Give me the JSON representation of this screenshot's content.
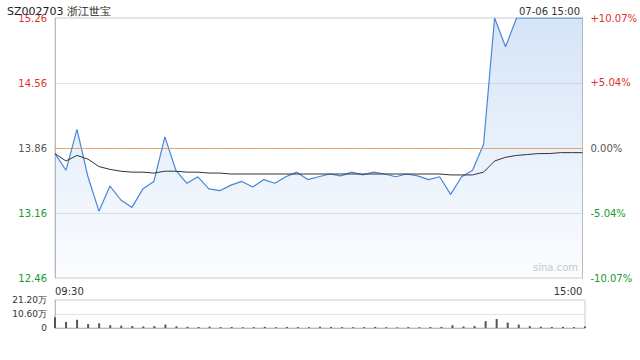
{
  "chart_data": [
    {
      "type": "line",
      "title": "SZ002703 浙江世宝",
      "subtitle": "07-06 15:00",
      "annotations": [
        "sina.com"
      ],
      "categories": [
        "09:30",
        null,
        null,
        null,
        null,
        null,
        null,
        null,
        null,
        null,
        null,
        null,
        null,
        null,
        null,
        null,
        null,
        null,
        null,
        null,
        null,
        null,
        null,
        null,
        null,
        null,
        null,
        null,
        null,
        null,
        null,
        null,
        null,
        null,
        null,
        null,
        null,
        null,
        null,
        null,
        null,
        null,
        null,
        null,
        null,
        null,
        null,
        null,
        "15:00"
      ],
      "series": [
        {
          "type": "area",
          "color": "#4a86d8",
          "values": [
            13.8,
            13.62,
            14.06,
            13.55,
            13.18,
            13.45,
            13.3,
            13.22,
            13.42,
            13.5,
            13.98,
            13.62,
            13.48,
            13.55,
            13.42,
            13.4,
            13.46,
            13.5,
            13.44,
            13.52,
            13.48,
            13.55,
            13.6,
            13.52,
            13.55,
            13.58,
            13.56,
            13.6,
            13.57,
            13.6,
            13.58,
            13.55,
            13.58,
            13.56,
            13.52,
            13.55,
            13.36,
            13.55,
            13.62,
            13.9,
            15.26,
            14.95,
            15.26,
            15.26,
            15.26,
            15.26,
            15.26,
            15.26,
            15.26
          ]
        },
        {
          "type": "line",
          "color": "#333333",
          "values": [
            13.8,
            13.72,
            13.78,
            13.74,
            13.66,
            13.63,
            13.61,
            13.6,
            13.6,
            13.59,
            13.61,
            13.61,
            13.6,
            13.6,
            13.59,
            13.59,
            13.58,
            13.58,
            13.58,
            13.58,
            13.58,
            13.58,
            13.58,
            13.58,
            13.58,
            13.58,
            13.58,
            13.58,
            13.58,
            13.58,
            13.58,
            13.58,
            13.58,
            13.58,
            13.58,
            13.58,
            13.57,
            13.57,
            13.57,
            13.6,
            13.72,
            13.76,
            13.78,
            13.79,
            13.8,
            13.8,
            13.81,
            13.81,
            13.81
          ]
        }
      ],
      "ylim": [
        12.46,
        15.26
      ],
      "yticks": [
        12.46,
        13.16,
        13.86,
        14.56,
        15.26
      ],
      "y2lim": [
        -10.07,
        10.07
      ],
      "y2ticks": [
        {
          "value": -10.07,
          "label": "-10.07%"
        },
        {
          "value": -5.04,
          "label": "-5.04%"
        },
        {
          "value": 0,
          "label": "0.00%"
        },
        {
          "value": 5.04,
          "label": "+5.04%"
        },
        {
          "value": 10.07,
          "label": "+10.07%"
        }
      ],
      "baseline": 13.86,
      "grid": true
    },
    {
      "type": "bar",
      "categories": [
        null,
        null,
        null,
        null,
        null,
        null,
        null,
        null,
        null,
        null,
        null,
        null,
        null,
        null,
        null,
        null,
        null,
        null,
        null,
        null,
        null,
        null,
        null,
        null,
        null,
        null,
        null,
        null,
        null,
        null,
        null,
        null,
        null,
        null,
        null,
        null,
        null,
        null,
        null,
        null,
        null,
        null,
        null,
        null,
        null,
        null,
        null,
        null,
        null
      ],
      "values": [
        82000,
        46000,
        62000,
        30000,
        36000,
        22000,
        18000,
        15000,
        12000,
        14000,
        26000,
        13000,
        9000,
        8000,
        10000,
        7000,
        8000,
        6000,
        7000,
        9000,
        6000,
        8000,
        7000,
        6000,
        9000,
        8000,
        7000,
        6000,
        7000,
        8000,
        6000,
        5000,
        7000,
        6000,
        8000,
        9000,
        21000,
        12000,
        15000,
        52000,
        68000,
        41000,
        26000,
        14000,
        10000,
        8000,
        9000,
        7000,
        12000
      ],
      "color": "#555555",
      "ylim": [
        0,
        212000
      ],
      "yticks": [
        0,
        {
          "value": 106000,
          "label": "10.60万"
        },
        {
          "value": 212000,
          "label": "21.20万"
        }
      ],
      "tick_labels": "y",
      "grid": true
    }
  ]
}
